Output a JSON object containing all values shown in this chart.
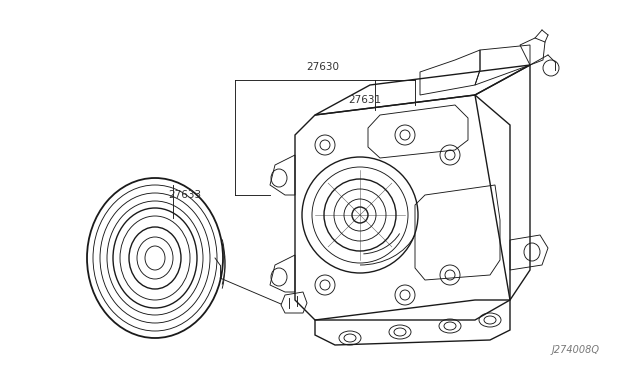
{
  "bg_color": "#ffffff",
  "line_color": "#1a1a1a",
  "text_color": "#333333",
  "fig_width": 6.4,
  "fig_height": 3.72,
  "dpi": 100,
  "bottom_code": "J274008Q",
  "lw_main": 1.0,
  "lw_thin": 0.65,
  "lw_thick": 1.3
}
